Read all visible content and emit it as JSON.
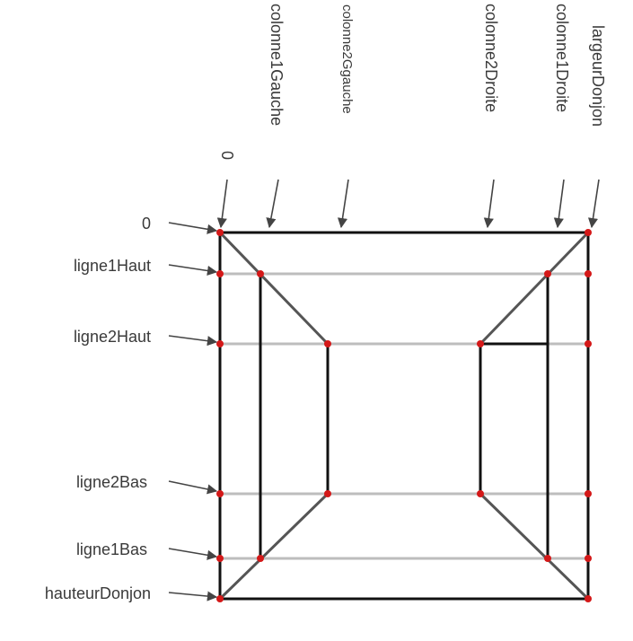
{
  "diagram": {
    "row_labels": {
      "zero": "0",
      "ligne1Haut": "ligne1Haut",
      "ligne2Haut": "ligne2Haut",
      "ligne2Bas": "ligne2Bas",
      "ligne1Bas": "ligne1Bas",
      "hauteurDonjon": "hauteurDonjon"
    },
    "column_labels": {
      "zero": "0",
      "colonne1Gauche": "colonne1Gauche",
      "colonne2Ggauche": "colonne2Ggauche",
      "colonne2Droite": "colonne2Droite",
      "colonne1Droite": "colonne1Droite",
      "largeurDonjon": "largeurDonjon"
    },
    "colors": {
      "line": "#111111",
      "guide": "#bdbdbd",
      "arrow": "#444444",
      "point": "#d41818"
    }
  }
}
